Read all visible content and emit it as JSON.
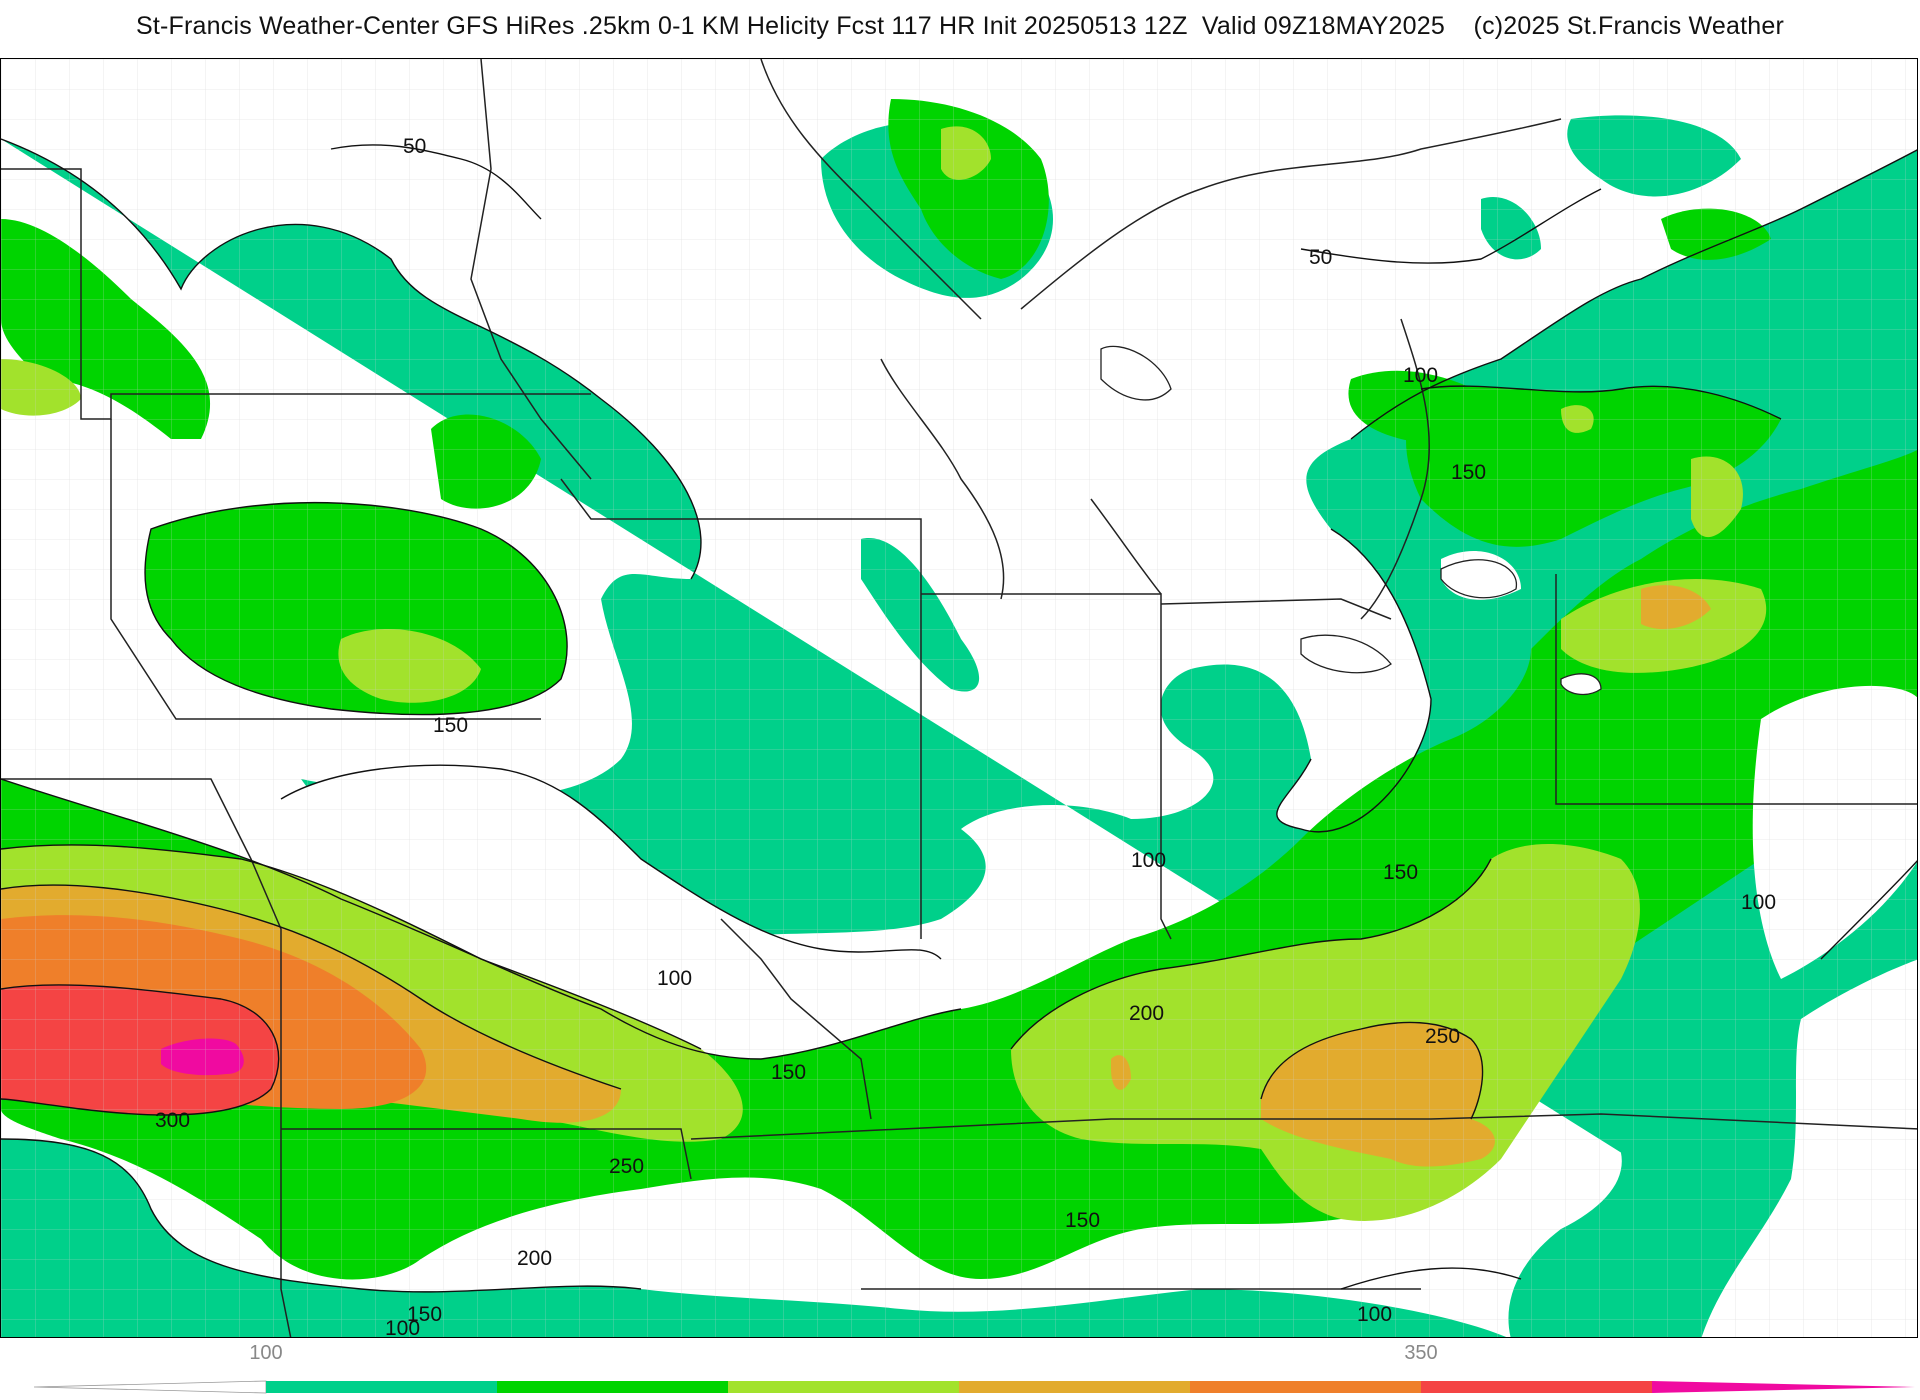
{
  "title": "St-Francis Weather-Center GFS HiRes .25km 0-1 KM Helicity Fcst 117 HR Init 20250513 12Z  Valid 09Z18MAY2025    (c)2025 St.Francis Weather",
  "colors": {
    "below_100": "#ffffff",
    "c100_150": "#00d08a",
    "c150_200": "#00d400",
    "c200_250": "#a2e22c",
    "c250_300": "#e2ab2e",
    "c300_350": "#ef7f2a",
    "c350_400": "#f44444",
    "c400_plus": "#f00aa0",
    "contour_line": "#111111",
    "state_border": "#222222",
    "county_border": "#c8c8c8"
  },
  "contour_labels": [
    {
      "id": "label-50-north",
      "text": "50"
    },
    {
      "id": "label-50-ne",
      "text": "50"
    },
    {
      "id": "label-100-ontario",
      "text": "100"
    },
    {
      "id": "label-150-ontario",
      "text": "150"
    },
    {
      "id": "label-150-iowa",
      "text": "150"
    },
    {
      "id": "label-100-indiana",
      "text": "100"
    },
    {
      "id": "label-150-ohio",
      "text": "150"
    },
    {
      "id": "label-100-virginia",
      "text": "100"
    },
    {
      "id": "label-100-missouri",
      "text": "100"
    },
    {
      "id": "label-150-missouri",
      "text": "150"
    },
    {
      "id": "label-200-kentucky",
      "text": "200"
    },
    {
      "id": "label-250-kentucky",
      "text": "250"
    },
    {
      "id": "label-300-kansas",
      "text": "300"
    },
    {
      "id": "label-250-oklahoma",
      "text": "250"
    },
    {
      "id": "label-200-oklahoma",
      "text": "200"
    },
    {
      "id": "label-150-tennessee",
      "text": "150"
    },
    {
      "id": "label-150-sw",
      "text": "150"
    },
    {
      "id": "label-100-sw",
      "text": "100"
    },
    {
      "id": "label-100-alabama",
      "text": "100"
    }
  ],
  "colorbar": {
    "ticks": [
      {
        "label": "100",
        "value": 100
      },
      {
        "label": "350",
        "value": 350
      }
    ],
    "bins": [
      {
        "from": 100,
        "to": 150,
        "color": "#00d08a"
      },
      {
        "from": 150,
        "to": 200,
        "color": "#00d400"
      },
      {
        "from": 200,
        "to": 250,
        "color": "#a2e22c"
      },
      {
        "from": 250,
        "to": 300,
        "color": "#e2ab2e"
      },
      {
        "from": 300,
        "to": 350,
        "color": "#ef7f2a"
      },
      {
        "from": 350,
        "to": 400,
        "color": "#f44444"
      },
      {
        "from": 400,
        "to": 450,
        "color": "#f00aa0"
      }
    ]
  }
}
